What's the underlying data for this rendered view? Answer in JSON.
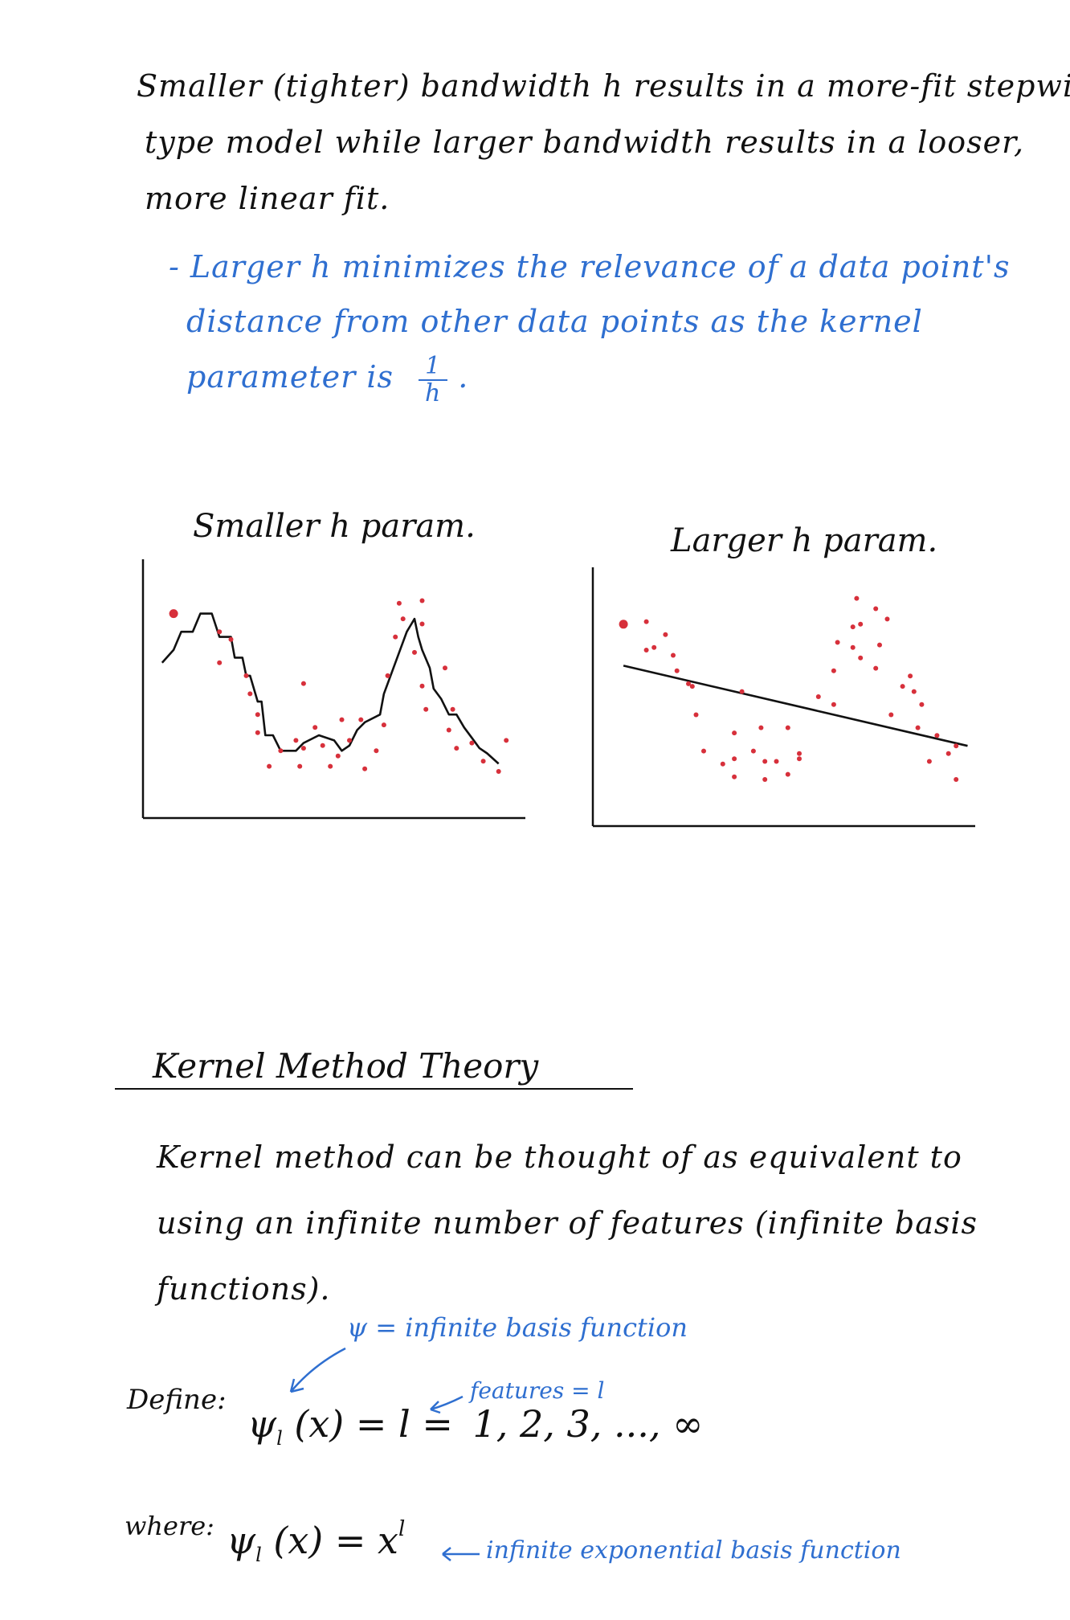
{
  "intro": {
    "line1": "Smaller (tighter) bandwidth h results in a more-fit stepwise",
    "line2": "type model while larger bandwidth results in a looser,",
    "line3": "more linear fit."
  },
  "note": {
    "line1": "- Larger h minimizes the relevance of a data point's",
    "line2": "distance from other data points as the kernel",
    "line3": "parameter is",
    "frac_num": "1",
    "frac_den": "h",
    "frac_tail": "."
  },
  "charts": {
    "left_title": "Smaller h param.",
    "right_title": "Larger h param."
  },
  "chart_data": [
    {
      "type": "scatter",
      "title": "Smaller h param.",
      "xlabel": "",
      "ylabel": "",
      "xlim": [
        0,
        100
      ],
      "ylim": [
        0,
        100
      ],
      "points": [
        {
          "x": 8,
          "y": 79
        },
        {
          "x": 20,
          "y": 72
        },
        {
          "x": 23,
          "y": 69
        },
        {
          "x": 20,
          "y": 60
        },
        {
          "x": 27,
          "y": 55
        },
        {
          "x": 28,
          "y": 48
        },
        {
          "x": 30,
          "y": 40
        },
        {
          "x": 30,
          "y": 33
        },
        {
          "x": 36,
          "y": 26
        },
        {
          "x": 33,
          "y": 20
        },
        {
          "x": 40,
          "y": 30
        },
        {
          "x": 42,
          "y": 27
        },
        {
          "x": 41,
          "y": 20
        },
        {
          "x": 45,
          "y": 35
        },
        {
          "x": 42,
          "y": 52
        },
        {
          "x": 47,
          "y": 28
        },
        {
          "x": 49,
          "y": 20
        },
        {
          "x": 51,
          "y": 24
        },
        {
          "x": 52,
          "y": 38
        },
        {
          "x": 54,
          "y": 30
        },
        {
          "x": 57,
          "y": 38
        },
        {
          "x": 63,
          "y": 36
        },
        {
          "x": 58,
          "y": 19
        },
        {
          "x": 61,
          "y": 26
        },
        {
          "x": 64,
          "y": 55
        },
        {
          "x": 66,
          "y": 70
        },
        {
          "x": 68,
          "y": 77
        },
        {
          "x": 67,
          "y": 83
        },
        {
          "x": 73,
          "y": 84
        },
        {
          "x": 73,
          "y": 75
        },
        {
          "x": 71,
          "y": 64
        },
        {
          "x": 73,
          "y": 51
        },
        {
          "x": 74,
          "y": 42
        },
        {
          "x": 79,
          "y": 58
        },
        {
          "x": 81,
          "y": 42
        },
        {
          "x": 82,
          "y": 27
        },
        {
          "x": 80,
          "y": 34
        },
        {
          "x": 86,
          "y": 29
        },
        {
          "x": 89,
          "y": 22
        },
        {
          "x": 93,
          "y": 18
        },
        {
          "x": 95,
          "y": 30
        }
      ],
      "fit_line": [
        {
          "x": 5,
          "y": 60
        },
        {
          "x": 8,
          "y": 65
        },
        {
          "x": 10,
          "y": 72
        },
        {
          "x": 13,
          "y": 72
        },
        {
          "x": 15,
          "y": 79
        },
        {
          "x": 18,
          "y": 79
        },
        {
          "x": 20,
          "y": 70
        },
        {
          "x": 23,
          "y": 70
        },
        {
          "x": 24,
          "y": 62
        },
        {
          "x": 26,
          "y": 62
        },
        {
          "x": 27,
          "y": 55
        },
        {
          "x": 28,
          "y": 55
        },
        {
          "x": 30,
          "y": 45
        },
        {
          "x": 31,
          "y": 45
        },
        {
          "x": 32,
          "y": 32
        },
        {
          "x": 34,
          "y": 32
        },
        {
          "x": 36,
          "y": 26
        },
        {
          "x": 40,
          "y": 26
        },
        {
          "x": 42,
          "y": 29
        },
        {
          "x": 46,
          "y": 32
        },
        {
          "x": 50,
          "y": 30
        },
        {
          "x": 52,
          "y": 26
        },
        {
          "x": 54,
          "y": 28
        },
        {
          "x": 56,
          "y": 34
        },
        {
          "x": 58,
          "y": 37
        },
        {
          "x": 62,
          "y": 40
        },
        {
          "x": 63,
          "y": 48
        },
        {
          "x": 65,
          "y": 56
        },
        {
          "x": 67,
          "y": 64
        },
        {
          "x": 69,
          "y": 72
        },
        {
          "x": 71,
          "y": 77
        },
        {
          "x": 72,
          "y": 70
        },
        {
          "x": 73,
          "y": 65
        },
        {
          "x": 75,
          "y": 58
        },
        {
          "x": 76,
          "y": 50
        },
        {
          "x": 78,
          "y": 46
        },
        {
          "x": 80,
          "y": 40
        },
        {
          "x": 82,
          "y": 40
        },
        {
          "x": 84,
          "y": 35
        },
        {
          "x": 86,
          "y": 31
        },
        {
          "x": 88,
          "y": 27
        },
        {
          "x": 90,
          "y": 25
        },
        {
          "x": 93,
          "y": 21
        }
      ]
    },
    {
      "type": "scatter",
      "title": "Larger h param.",
      "xlabel": "",
      "ylabel": "",
      "xlim": [
        0,
        100
      ],
      "ylim": [
        0,
        100
      ],
      "points": [
        {
          "x": 8,
          "y": 78
        },
        {
          "x": 14,
          "y": 79
        },
        {
          "x": 14,
          "y": 68
        },
        {
          "x": 16,
          "y": 69
        },
        {
          "x": 19,
          "y": 74
        },
        {
          "x": 21,
          "y": 66
        },
        {
          "x": 22,
          "y": 60
        },
        {
          "x": 25,
          "y": 55
        },
        {
          "x": 26,
          "y": 54
        },
        {
          "x": 27,
          "y": 43
        },
        {
          "x": 29,
          "y": 29
        },
        {
          "x": 34,
          "y": 24
        },
        {
          "x": 37,
          "y": 26
        },
        {
          "x": 37,
          "y": 36
        },
        {
          "x": 37,
          "y": 19
        },
        {
          "x": 39,
          "y": 52
        },
        {
          "x": 42,
          "y": 29
        },
        {
          "x": 44,
          "y": 38
        },
        {
          "x": 45,
          "y": 25
        },
        {
          "x": 45,
          "y": 18
        },
        {
          "x": 48,
          "y": 25
        },
        {
          "x": 51,
          "y": 38
        },
        {
          "x": 51,
          "y": 20
        },
        {
          "x": 54,
          "y": 28
        },
        {
          "x": 54,
          "y": 26
        },
        {
          "x": 59,
          "y": 50
        },
        {
          "x": 63,
          "y": 47
        },
        {
          "x": 63,
          "y": 60
        },
        {
          "x": 64,
          "y": 71
        },
        {
          "x": 68,
          "y": 77
        },
        {
          "x": 68,
          "y": 69
        },
        {
          "x": 69,
          "y": 88
        },
        {
          "x": 70,
          "y": 78
        },
        {
          "x": 70,
          "y": 65
        },
        {
          "x": 74,
          "y": 84
        },
        {
          "x": 74,
          "y": 61
        },
        {
          "x": 75,
          "y": 70
        },
        {
          "x": 77,
          "y": 80
        },
        {
          "x": 78,
          "y": 43
        },
        {
          "x": 81,
          "y": 54
        },
        {
          "x": 83,
          "y": 58
        },
        {
          "x": 84,
          "y": 52
        },
        {
          "x": 85,
          "y": 38
        },
        {
          "x": 86,
          "y": 47
        },
        {
          "x": 88,
          "y": 25
        },
        {
          "x": 90,
          "y": 35
        },
        {
          "x": 93,
          "y": 28
        },
        {
          "x": 95,
          "y": 31
        },
        {
          "x": 95,
          "y": 18
        }
      ],
      "fit_line": [
        {
          "x": 8,
          "y": 62
        },
        {
          "x": 98,
          "y": 31
        }
      ]
    }
  ],
  "section": {
    "title": "Kernel Method Theory"
  },
  "theory": {
    "line1": "Kernel method can be thought of as equivalent to",
    "line2": "using an infinite number of features (infinite basis",
    "line3": "functions)."
  },
  "annotations": {
    "psi_note": "ψ = infinite basis function",
    "features_note": "features = l",
    "exp_note": "infinite exponential basis function"
  },
  "define": {
    "label": "Define:",
    "psi": "ψ",
    "sub": "l",
    "arg": "(x) = l =",
    "values": "1, 2, 3, ..., ∞"
  },
  "where": {
    "label": "where:",
    "psi": "ψ",
    "sub": "l",
    "arg": "(x) = x",
    "sup": "l"
  }
}
